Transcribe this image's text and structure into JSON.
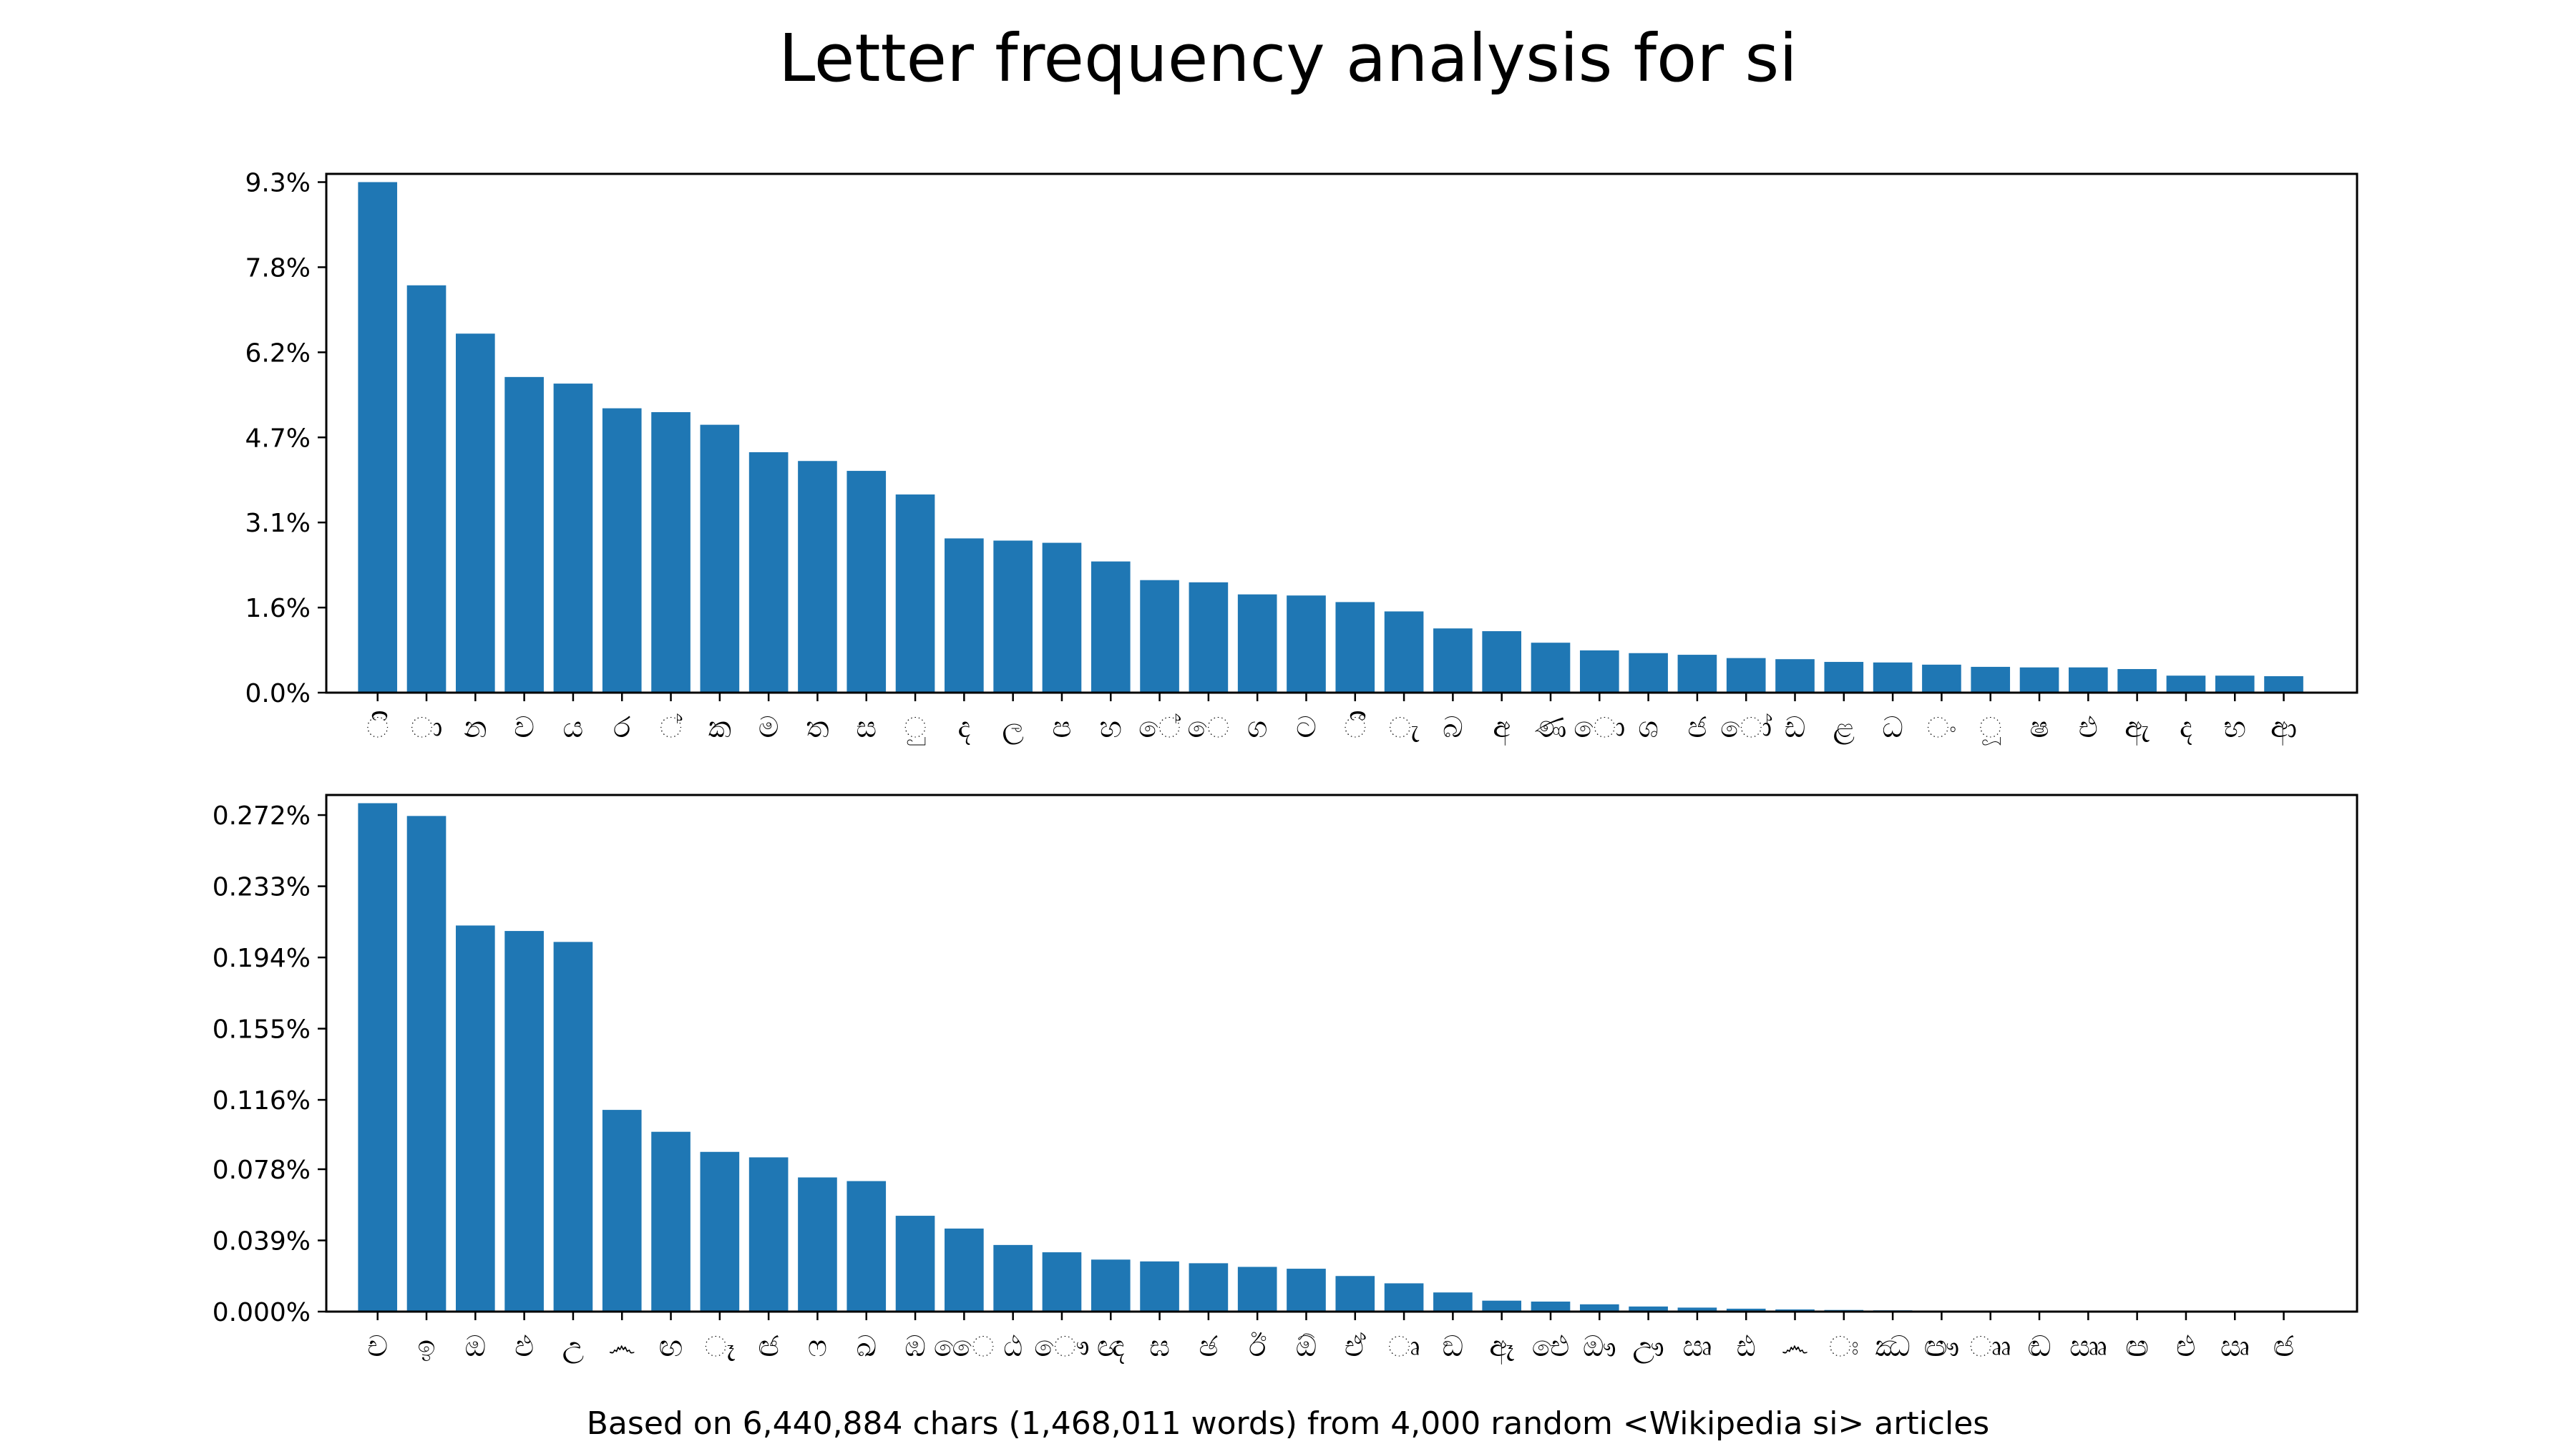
{
  "title": "Letter frequency analysis for si",
  "footer": "Based on 6,440,884 chars (1,468,011 words) from 4,000 random <Wikipedia si> articles",
  "colors": {
    "bar": "#1f77b4",
    "axis": "#000000"
  },
  "chart_data": [
    {
      "type": "bar",
      "grid": false,
      "ylim": [
        0,
        0.0945
      ],
      "yticks": [
        0.0,
        0.0155,
        0.031,
        0.0465,
        0.062,
        0.0775,
        0.093
      ],
      "yticklabels": [
        "0.0%",
        "1.6%",
        "3.1%",
        "4.7%",
        "6.2%",
        "7.8%",
        "9.3%"
      ],
      "categories": [
        "ි",
        "ා",
        "න",
        "ව",
        "ය",
        "ර",
        "්",
        "ක",
        "ම",
        "ත",
        "ස",
        "ු",
        "ද",
        "ල",
        "ප",
        "හ",
        "ේ",
        "ෙ",
        "ග",
        "ට",
        "ී",
        "ැ",
        "බ",
        "අ",
        "ණ",
        "ො",
        "ශ",
        "ජ",
        "ෝ",
        "ඩ",
        "ළ",
        "ධ",
        "ං",
        "ූ",
        "ෂ",
        "එ",
        "ඇ",
        "ද",
        "භ",
        "ආ"
      ],
      "values": [
        0.093,
        0.0742,
        0.0654,
        0.0575,
        0.0563,
        0.0518,
        0.0511,
        0.0488,
        0.0438,
        0.0422,
        0.0404,
        0.0361,
        0.0281,
        0.0277,
        0.0273,
        0.0239,
        0.0205,
        0.0201,
        0.0179,
        0.0177,
        0.0165,
        0.0148,
        0.0117,
        0.0112,
        0.0091,
        0.0077,
        0.0072,
        0.0069,
        0.0063,
        0.0061,
        0.0056,
        0.0055,
        0.0051,
        0.0047,
        0.0046,
        0.0046,
        0.0043,
        0.0031,
        0.0031,
        0.003
      ]
    },
    {
      "type": "bar",
      "grid": false,
      "ylim": [
        0,
        0.00283
      ],
      "yticks": [
        0.0,
        0.00039,
        0.00078,
        0.00116,
        0.00155,
        0.00194,
        0.00233,
        0.00272
      ],
      "yticklabels": [
        "0.000%",
        "0.039%",
        "0.078%",
        "0.116%",
        "0.155%",
        "0.194%",
        "0.233%",
        "0.272%"
      ],
      "categories": [
        "ච",
        "ඉ",
        "ඔ",
        "ඵ",
        "උ",
        "෴",
        "ඟ",
        "ෑ",
        "ඦ",
        "ෆ",
        "ඛ",
        "ඹ",
        "ෛ",
        "ඨ",
        "ෞ",
        "ඥ",
        "ඝ",
        "ඡ",
        "ඊ",
        "ඕ",
        "ඒ",
        "ෘ",
        "ඞ",
        "ඈ",
        "ඓ",
        "ඖ",
        "ඌ",
        "ඍ",
        "ඪ",
        "෴",
        "ඃ",
        "ඣ",
        "ඐ",
        "ෲ",
        "ඬ",
        "ඎ",
        "ඏ",
        "ළු",
        "ඍ",
        "ඦ"
      ],
      "values": [
        0.002785,
        0.002715,
        0.002115,
        0.002085,
        0.002025,
        0.001105,
        0.000985,
        0.000875,
        0.000845,
        0.000735,
        0.000715,
        0.000525,
        0.000455,
        0.000365,
        0.000325,
        0.000285,
        0.000275,
        0.000265,
        0.000245,
        0.000235,
        0.000195,
        0.000155,
        0.000105,
        6e-05,
        5.5e-05,
        4e-05,
        2.8e-05,
        2.2e-05,
        1.6e-05,
        1.2e-05,
        9e-06,
        7e-06,
        5e-06,
        4e-06,
        3e-06,
        2e-06,
        2e-06,
        1e-06,
        1e-06,
        1e-06
      ]
    }
  ]
}
